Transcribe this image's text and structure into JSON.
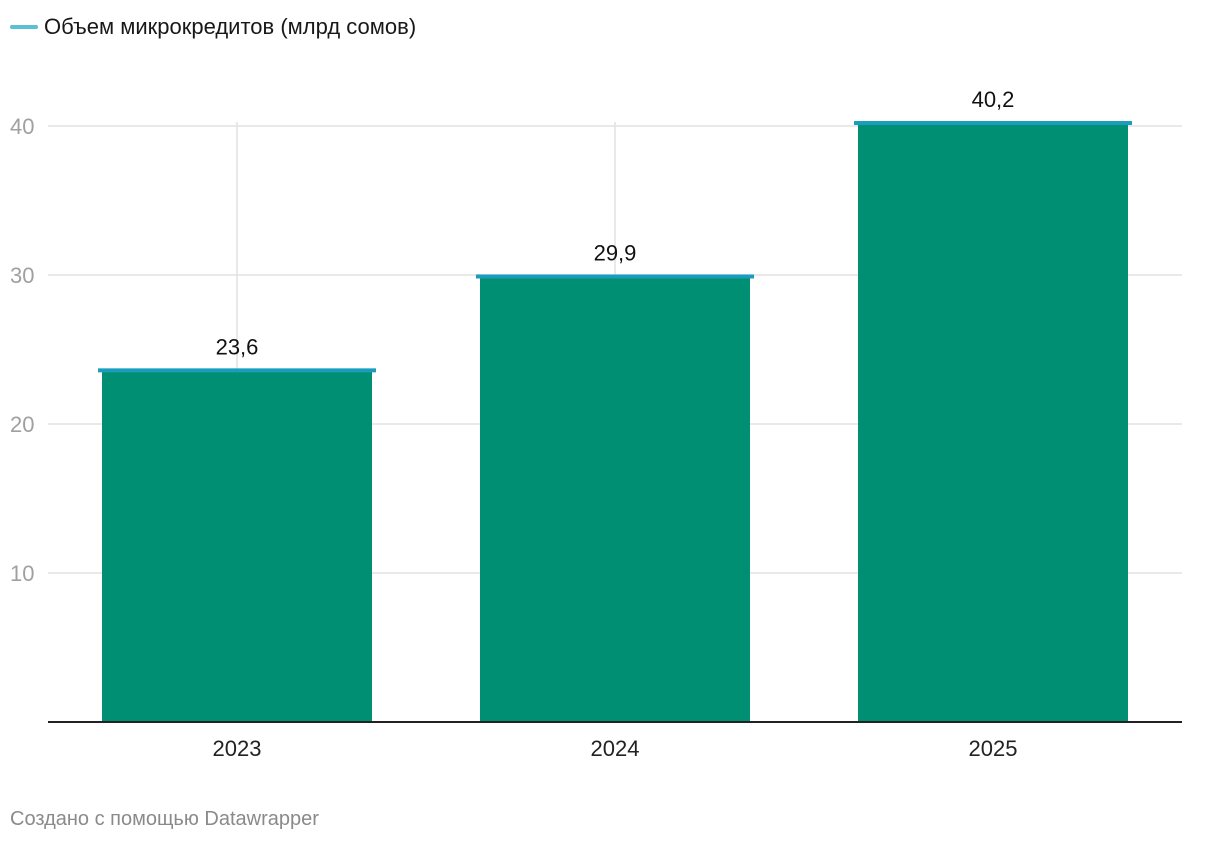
{
  "legend": {
    "label": "Объем микрокредитов (млрд сомов)",
    "color": "#5bbfd6"
  },
  "chart_data": {
    "type": "bar",
    "categories": [
      "2023",
      "2024",
      "2025"
    ],
    "series": [
      {
        "name": "Объем микрокредитов (млрд сомов)",
        "values": [
          23.6,
          29.9,
          40.2
        ],
        "labels": [
          "23,6",
          "29,9",
          "40,2"
        ]
      }
    ],
    "ylim": [
      0,
      40
    ],
    "yticks": [
      10,
      20,
      30,
      40
    ],
    "grid": true,
    "legend_position": "top-left",
    "bar_color": "#008f72",
    "bar_top_color": "#1a9dbd"
  },
  "footer": {
    "credit": "Создано с помощью Datawrapper"
  }
}
